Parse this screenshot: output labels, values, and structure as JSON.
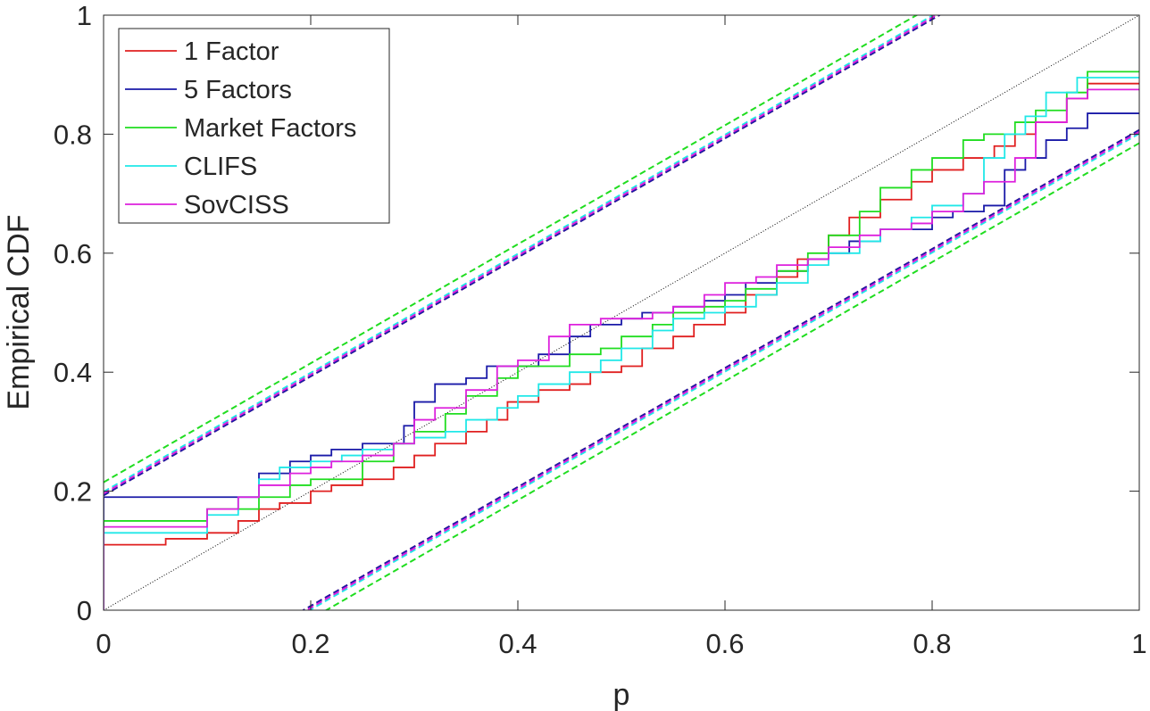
{
  "chart_data": {
    "type": "line",
    "title": "",
    "xlabel": "p",
    "ylabel": "Empirical CDF",
    "xlim": [
      0,
      1
    ],
    "ylim": [
      0,
      1
    ],
    "xticks": [
      0,
      0.2,
      0.4,
      0.6,
      0.8,
      1
    ],
    "xtick_labels": [
      "0",
      "0.2",
      "0.4",
      "0.6",
      "0.8",
      "1"
    ],
    "yticks": [
      0,
      0.2,
      0.4,
      0.6,
      0.8,
      1
    ],
    "ytick_labels": [
      "0",
      "0.2",
      "0.4",
      "0.6",
      "0.8",
      "1"
    ],
    "grid": false,
    "legend_position": "top-left",
    "reference_line": {
      "name": "45-degree line",
      "style": "dotted",
      "color": "#000000",
      "x": [
        0,
        1
      ],
      "y": [
        0,
        1
      ]
    },
    "series": [
      {
        "name": "1 Factor",
        "color": "#e02020",
        "band_offset": 0.193,
        "x": [
          0,
          0,
          0.06,
          0.1,
          0.13,
          0.15,
          0.17,
          0.2,
          0.22,
          0.25,
          0.28,
          0.3,
          0.32,
          0.35,
          0.37,
          0.39,
          0.42,
          0.45,
          0.47,
          0.5,
          0.52,
          0.55,
          0.57,
          0.6,
          0.62,
          0.65,
          0.67,
          0.7,
          0.72,
          0.75,
          0.78,
          0.8,
          0.83,
          0.86,
          0.88,
          0.9,
          0.93,
          0.95,
          1
        ],
        "y": [
          0,
          0.11,
          0.12,
          0.13,
          0.15,
          0.17,
          0.18,
          0.2,
          0.21,
          0.22,
          0.24,
          0.26,
          0.28,
          0.3,
          0.32,
          0.35,
          0.37,
          0.38,
          0.4,
          0.41,
          0.44,
          0.46,
          0.48,
          0.5,
          0.53,
          0.56,
          0.59,
          0.63,
          0.66,
          0.69,
          0.72,
          0.74,
          0.76,
          0.78,
          0.8,
          0.82,
          0.86,
          0.885,
          0.885
        ]
      },
      {
        "name": "5 Factors",
        "color": "#1a1aa8",
        "band_offset": 0.193,
        "x": [
          0,
          0,
          0.13,
          0.15,
          0.18,
          0.2,
          0.22,
          0.25,
          0.28,
          0.29,
          0.3,
          0.32,
          0.35,
          0.37,
          0.4,
          0.42,
          0.45,
          0.47,
          0.5,
          0.52,
          0.55,
          0.58,
          0.6,
          0.62,
          0.65,
          0.68,
          0.7,
          0.72,
          0.75,
          0.78,
          0.8,
          0.82,
          0.85,
          0.87,
          0.89,
          0.91,
          0.93,
          0.95,
          1
        ],
        "y": [
          0,
          0.19,
          0.19,
          0.23,
          0.25,
          0.26,
          0.27,
          0.28,
          0.28,
          0.31,
          0.35,
          0.38,
          0.39,
          0.41,
          0.41,
          0.43,
          0.46,
          0.48,
          0.49,
          0.5,
          0.51,
          0.52,
          0.53,
          0.55,
          0.57,
          0.59,
          0.6,
          0.62,
          0.64,
          0.64,
          0.66,
          0.67,
          0.68,
          0.74,
          0.76,
          0.79,
          0.81,
          0.835,
          0.835
        ]
      },
      {
        "name": "Market Factors",
        "color": "#20dd20",
        "band_offset": 0.215,
        "x": [
          0,
          0,
          0.05,
          0.1,
          0.15,
          0.18,
          0.2,
          0.25,
          0.28,
          0.3,
          0.33,
          0.35,
          0.38,
          0.4,
          0.43,
          0.45,
          0.48,
          0.5,
          0.53,
          0.55,
          0.58,
          0.6,
          0.62,
          0.65,
          0.68,
          0.7,
          0.73,
          0.75,
          0.78,
          0.8,
          0.83,
          0.85,
          0.88,
          0.9,
          0.93,
          0.95,
          1
        ],
        "y": [
          0,
          0.15,
          0.15,
          0.17,
          0.19,
          0.21,
          0.22,
          0.25,
          0.28,
          0.3,
          0.33,
          0.36,
          0.39,
          0.41,
          0.41,
          0.43,
          0.44,
          0.46,
          0.48,
          0.5,
          0.51,
          0.52,
          0.54,
          0.57,
          0.6,
          0.63,
          0.67,
          0.71,
          0.74,
          0.76,
          0.79,
          0.8,
          0.82,
          0.84,
          0.87,
          0.905,
          0.905
        ]
      },
      {
        "name": "CLIFS",
        "color": "#20e8e8",
        "band_offset": 0.199,
        "x": [
          0,
          0,
          0.06,
          0.1,
          0.13,
          0.15,
          0.17,
          0.2,
          0.23,
          0.25,
          0.28,
          0.3,
          0.33,
          0.35,
          0.38,
          0.4,
          0.42,
          0.45,
          0.48,
          0.5,
          0.53,
          0.55,
          0.58,
          0.6,
          0.63,
          0.65,
          0.68,
          0.7,
          0.73,
          0.75,
          0.78,
          0.8,
          0.83,
          0.85,
          0.87,
          0.89,
          0.91,
          0.94,
          1
        ],
        "y": [
          0,
          0.13,
          0.13,
          0.16,
          0.19,
          0.22,
          0.24,
          0.25,
          0.26,
          0.27,
          0.28,
          0.29,
          0.3,
          0.32,
          0.34,
          0.36,
          0.38,
          0.4,
          0.42,
          0.44,
          0.47,
          0.49,
          0.5,
          0.51,
          0.53,
          0.55,
          0.58,
          0.6,
          0.62,
          0.64,
          0.66,
          0.68,
          0.7,
          0.76,
          0.8,
          0.83,
          0.87,
          0.895,
          0.895
        ]
      },
      {
        "name": "SovCISS",
        "color": "#dd20dd",
        "band_offset": 0.196,
        "x": [
          0,
          0,
          0.05,
          0.1,
          0.13,
          0.15,
          0.18,
          0.2,
          0.22,
          0.25,
          0.28,
          0.3,
          0.32,
          0.35,
          0.38,
          0.4,
          0.43,
          0.45,
          0.48,
          0.5,
          0.53,
          0.55,
          0.58,
          0.6,
          0.63,
          0.65,
          0.68,
          0.7,
          0.73,
          0.75,
          0.78,
          0.8,
          0.83,
          0.85,
          0.88,
          0.9,
          0.93,
          0.95,
          1
        ],
        "y": [
          0,
          0.14,
          0.14,
          0.17,
          0.19,
          0.21,
          0.23,
          0.24,
          0.25,
          0.26,
          0.28,
          0.32,
          0.34,
          0.37,
          0.41,
          0.42,
          0.46,
          0.48,
          0.49,
          0.49,
          0.5,
          0.51,
          0.53,
          0.55,
          0.56,
          0.58,
          0.59,
          0.61,
          0.63,
          0.64,
          0.65,
          0.67,
          0.7,
          0.72,
          0.76,
          0.82,
          0.86,
          0.875,
          0.875
        ]
      }
    ]
  }
}
